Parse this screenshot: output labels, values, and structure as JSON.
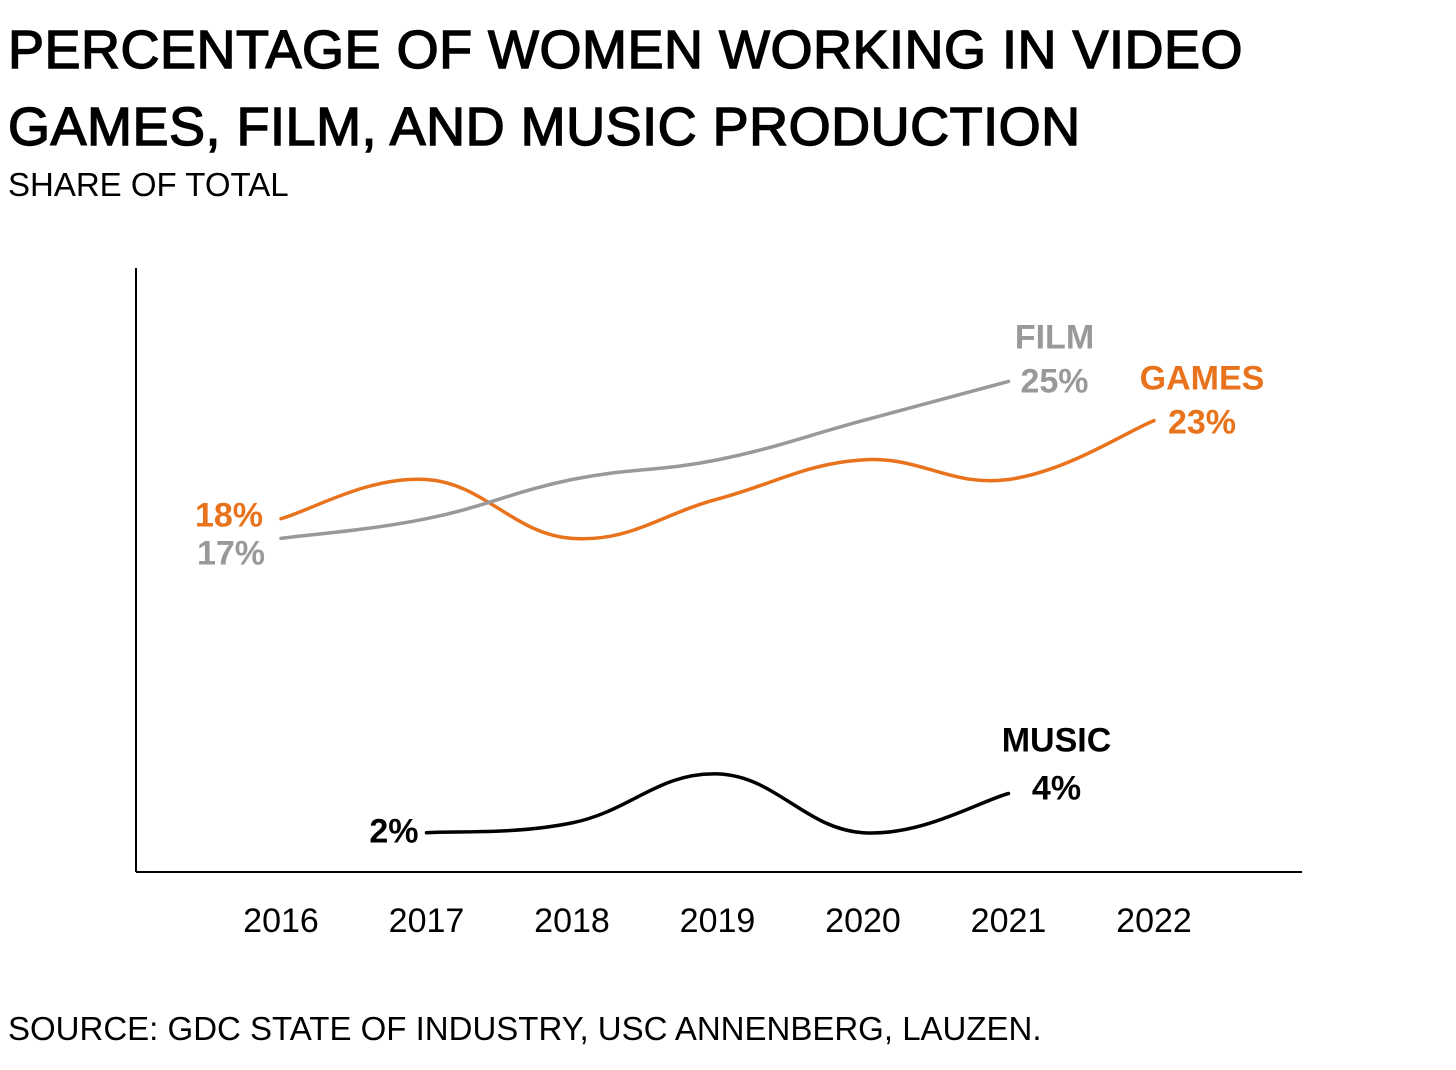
{
  "title": "PERCENTAGE OF WOMEN WORKING IN VIDEO GAMES, FILM, AND MUSIC PRODUCTION",
  "subtitle": "SHARE OF TOTAL",
  "source": "SOURCE: GDC STATE OF INDUSTRY, USC ANNENBERG, LAUZEN.",
  "colors": {
    "games": "#e8731c",
    "film": "#999999",
    "music": "#000000",
    "axis": "#000000"
  },
  "chart_data": {
    "type": "line",
    "title": "PERCENTAGE OF WOMEN WORKING IN VIDEO GAMES, FILM, AND MUSIC PRODUCTION",
    "subtitle": "SHARE OF TOTAL",
    "x": [
      "2016",
      "2017",
      "2018",
      "2019",
      "2020",
      "2021",
      "2022"
    ],
    "ylim": [
      0,
      30
    ],
    "grid": false,
    "legend": "inline-labels",
    "series": [
      {
        "name": "GAMES",
        "color": "#e8731c",
        "values": [
          18,
          20,
          17,
          19,
          21,
          20,
          23
        ],
        "start_label": "18%",
        "end_label": "23%"
      },
      {
        "name": "FILM",
        "color": "#999999",
        "values": [
          17,
          18,
          20,
          21,
          23,
          25,
          null
        ],
        "start_label": "17%",
        "end_label": "25%"
      },
      {
        "name": "MUSIC",
        "color": "#000000",
        "values": [
          null,
          2,
          2.5,
          5,
          2,
          4,
          null
        ],
        "start_label": "2%",
        "end_label": "4%"
      }
    ]
  }
}
